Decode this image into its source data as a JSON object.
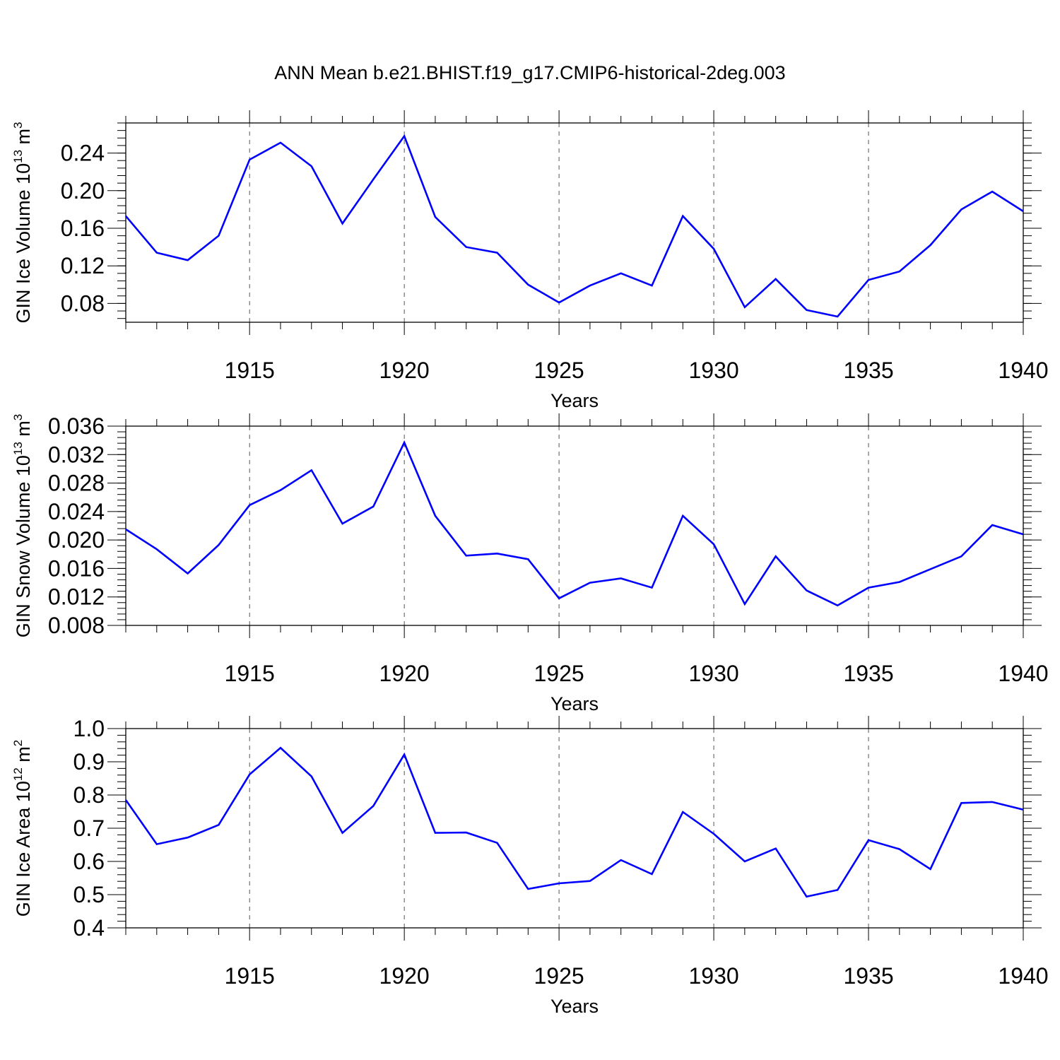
{
  "title": "ANN Mean b.e21.BHIST.f19_g17.CMIP6-historical-2deg.003",
  "colors": {
    "series": "#0000ff",
    "axis": "#000000",
    "grid": "#555555"
  },
  "chart_data": [
    {
      "type": "line",
      "ylabel_main": "GIN Ice Volume 10",
      "ylabel_exp": "13",
      "ylabel_unit": " m",
      "ylabel_unit_exp": "3",
      "xlabel": "Years",
      "xlim": [
        1911,
        1940
      ],
      "ylim": [
        0.06,
        0.272
      ],
      "xticks": [
        1915,
        1920,
        1925,
        1930,
        1935,
        1940
      ],
      "yticks": [
        0.08,
        0.12,
        0.16,
        0.2,
        0.24
      ],
      "ytick_labels": [
        "0.08",
        "0.12",
        "0.16",
        "0.20",
        "0.24"
      ],
      "x": [
        1911,
        1912,
        1913,
        1914,
        1915,
        1916,
        1917,
        1918,
        1919,
        1920,
        1921,
        1922,
        1923,
        1924,
        1925,
        1926,
        1927,
        1928,
        1929,
        1930,
        1931,
        1932,
        1933,
        1934,
        1935,
        1936,
        1937,
        1938,
        1939,
        1940
      ],
      "values": [
        0.173,
        0.134,
        0.126,
        0.152,
        0.233,
        0.251,
        0.226,
        0.165,
        0.212,
        0.258,
        0.172,
        0.14,
        0.134,
        0.1,
        0.081,
        0.099,
        0.112,
        0.099,
        0.173,
        0.138,
        0.076,
        0.106,
        0.073,
        0.066,
        0.105,
        0.114,
        0.142,
        0.18,
        0.199,
        0.178
      ],
      "vgrid": true
    },
    {
      "type": "line",
      "ylabel_main": "GIN Snow Volume 10",
      "ylabel_exp": "13",
      "ylabel_unit": " m",
      "ylabel_unit_exp": "3",
      "xlabel": "Years",
      "xlim": [
        1911,
        1940
      ],
      "ylim": [
        0.008,
        0.036
      ],
      "xticks": [
        1915,
        1920,
        1925,
        1930,
        1935,
        1940
      ],
      "yticks": [
        0.008,
        0.012,
        0.016,
        0.02,
        0.024,
        0.028,
        0.032,
        0.036
      ],
      "ytick_labels": [
        "0.008",
        "0.012",
        "0.016",
        "0.020",
        "0.024",
        "0.028",
        "0.032",
        "0.036"
      ],
      "x": [
        1911,
        1912,
        1913,
        1914,
        1915,
        1916,
        1917,
        1918,
        1919,
        1920,
        1921,
        1922,
        1923,
        1924,
        1925,
        1926,
        1927,
        1928,
        1929,
        1930,
        1931,
        1932,
        1933,
        1934,
        1935,
        1936,
        1937,
        1938,
        1939,
        1940
      ],
      "values": [
        0.0215,
        0.0187,
        0.0153,
        0.0193,
        0.0249,
        0.027,
        0.0298,
        0.0223,
        0.0247,
        0.0337,
        0.0234,
        0.0178,
        0.0181,
        0.0173,
        0.0118,
        0.014,
        0.0146,
        0.0133,
        0.0234,
        0.0194,
        0.011,
        0.0177,
        0.0129,
        0.0108,
        0.0133,
        0.0141,
        0.0159,
        0.0177,
        0.0221,
        0.0208
      ],
      "vgrid": true
    },
    {
      "type": "line",
      "ylabel_main": "GIN Ice Area 10",
      "ylabel_exp": "12",
      "ylabel_unit": " m",
      "ylabel_unit_exp": "2",
      "xlabel": "Years",
      "xlim": [
        1911,
        1940
      ],
      "ylim": [
        0.4,
        1.0
      ],
      "xticks": [
        1915,
        1920,
        1925,
        1930,
        1935,
        1940
      ],
      "yticks": [
        0.4,
        0.5,
        0.6,
        0.7,
        0.8,
        0.9,
        1.0
      ],
      "ytick_labels": [
        "0.4",
        "0.5",
        "0.6",
        "0.7",
        "0.8",
        "0.9",
        "1.0"
      ],
      "x": [
        1911,
        1912,
        1913,
        1914,
        1915,
        1916,
        1917,
        1918,
        1919,
        1920,
        1921,
        1922,
        1923,
        1924,
        1925,
        1926,
        1927,
        1928,
        1929,
        1930,
        1931,
        1932,
        1933,
        1934,
        1935,
        1936,
        1937,
        1938,
        1939,
        1940
      ],
      "values": [
        0.785,
        0.652,
        0.672,
        0.71,
        0.862,
        0.942,
        0.856,
        0.686,
        0.767,
        0.922,
        0.686,
        0.687,
        0.656,
        0.517,
        0.534,
        0.541,
        0.604,
        0.562,
        0.749,
        0.683,
        0.6,
        0.639,
        0.494,
        0.514,
        0.664,
        0.637,
        0.577,
        0.776,
        0.779,
        0.756
      ],
      "vgrid": true
    }
  ]
}
